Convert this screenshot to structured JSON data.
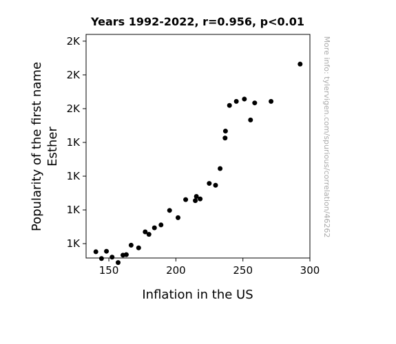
{
  "chart_data": {
    "type": "scatter",
    "title": "Years 1992-2022, r=0.956, p<0.01",
    "xlabel": "Inflation in the US",
    "ylabel_lines": [
      "Popularity of the first name",
      "Esther"
    ],
    "xlim": [
      133,
      300
    ],
    "ylim": [
      1015,
      2340
    ],
    "x_ticks": [
      150,
      200,
      250,
      300
    ],
    "y_ticks": [
      {
        "value": 1100,
        "label": "1K"
      },
      {
        "value": 1300,
        "label": "1K"
      },
      {
        "value": 1500,
        "label": "1K"
      },
      {
        "value": 1700,
        "label": "1K"
      },
      {
        "value": 1900,
        "label": "2K"
      },
      {
        "value": 2100,
        "label": "2K"
      },
      {
        "value": 2300,
        "label": "2K"
      }
    ],
    "grid": false,
    "marker_color": "#000000",
    "points": [
      {
        "x": 140.3,
        "y": 1052
      },
      {
        "x": 144.5,
        "y": 1012
      },
      {
        "x": 148.2,
        "y": 1055
      },
      {
        "x": 152.4,
        "y": 1020
      },
      {
        "x": 156.9,
        "y": 988
      },
      {
        "x": 160.5,
        "y": 1032
      },
      {
        "x": 163.0,
        "y": 1035
      },
      {
        "x": 166.6,
        "y": 1091
      },
      {
        "x": 172.2,
        "y": 1075
      },
      {
        "x": 177.1,
        "y": 1170
      },
      {
        "x": 179.9,
        "y": 1155
      },
      {
        "x": 184.0,
        "y": 1194
      },
      {
        "x": 188.9,
        "y": 1211
      },
      {
        "x": 195.3,
        "y": 1297
      },
      {
        "x": 201.6,
        "y": 1254
      },
      {
        "x": 207.3,
        "y": 1361
      },
      {
        "x": 215.3,
        "y": 1380
      },
      {
        "x": 214.5,
        "y": 1355
      },
      {
        "x": 218.1,
        "y": 1365
      },
      {
        "x": 224.9,
        "y": 1457
      },
      {
        "x": 229.6,
        "y": 1446
      },
      {
        "x": 233.0,
        "y": 1545
      },
      {
        "x": 236.7,
        "y": 1726
      },
      {
        "x": 237.0,
        "y": 1767
      },
      {
        "x": 240.0,
        "y": 1919
      },
      {
        "x": 245.1,
        "y": 1943
      },
      {
        "x": 251.1,
        "y": 1957
      },
      {
        "x": 255.7,
        "y": 1833
      },
      {
        "x": 258.8,
        "y": 1934
      },
      {
        "x": 271.0,
        "y": 1943
      },
      {
        "x": 292.7,
        "y": 2164
      }
    ]
  },
  "watermark": "More info: tylervigen.com/spurious/correlation/46262"
}
